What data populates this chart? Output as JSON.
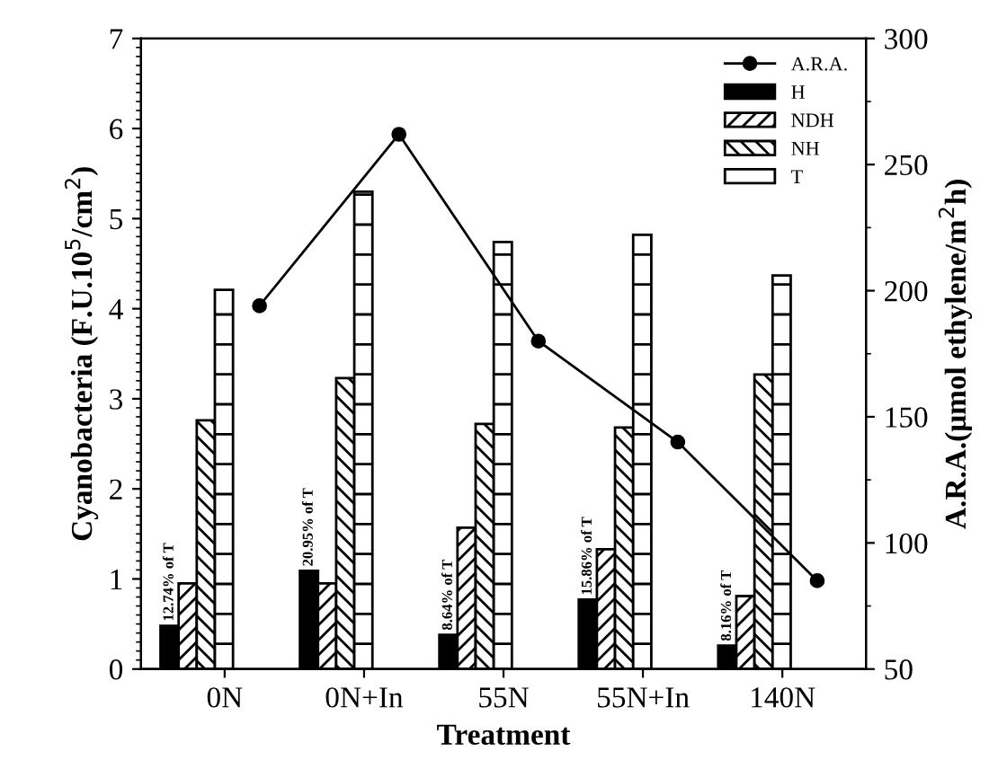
{
  "chart_data": {
    "type": "bar",
    "xlabel": "Treatment",
    "ylabel": "Cyanobacteria (F.U.10$^{5}$/cm$^{2}$)",
    "y2label": "A.R.A.(μmol ethylene/m$^{2}$h)",
    "categories": [
      "0N",
      "0N+In",
      "55N",
      "55N+In",
      "140N"
    ],
    "series": [
      {
        "name": "H",
        "color": "#000000",
        "values": [
          0.48,
          1.09,
          0.38,
          0.77,
          0.26
        ]
      },
      {
        "name": "NDH",
        "color": "#000000",
        "values": [
          0.95,
          0.95,
          1.57,
          1.33,
          0.81
        ]
      },
      {
        "name": "NH",
        "color": "#000000",
        "values": [
          2.76,
          3.23,
          2.72,
          2.68,
          3.27
        ]
      },
      {
        "name": "T",
        "color": "#000000",
        "values": [
          4.21,
          5.3,
          4.74,
          4.82,
          4.37
        ]
      },
      {
        "name": "A.R.A.",
        "type": "line",
        "axis": "y2",
        "color": "#000000",
        "marker": "circle",
        "line_style": "solid",
        "values": [
          194,
          262,
          180,
          140,
          85
        ]
      }
    ],
    "annotations": [
      "12.74% of T",
      "20.95% of T",
      "8.64% of T",
      "15.86% of T",
      "8.16% of T"
    ],
    "ylim": [
      0,
      7
    ],
    "yticks": [
      0,
      1,
      2,
      3,
      4,
      5,
      6,
      7
    ],
    "y2lim": [
      50,
      300
    ],
    "y2ticks": [
      50,
      100,
      150,
      200,
      250,
      300
    ],
    "grid": false,
    "legend": "top right"
  }
}
